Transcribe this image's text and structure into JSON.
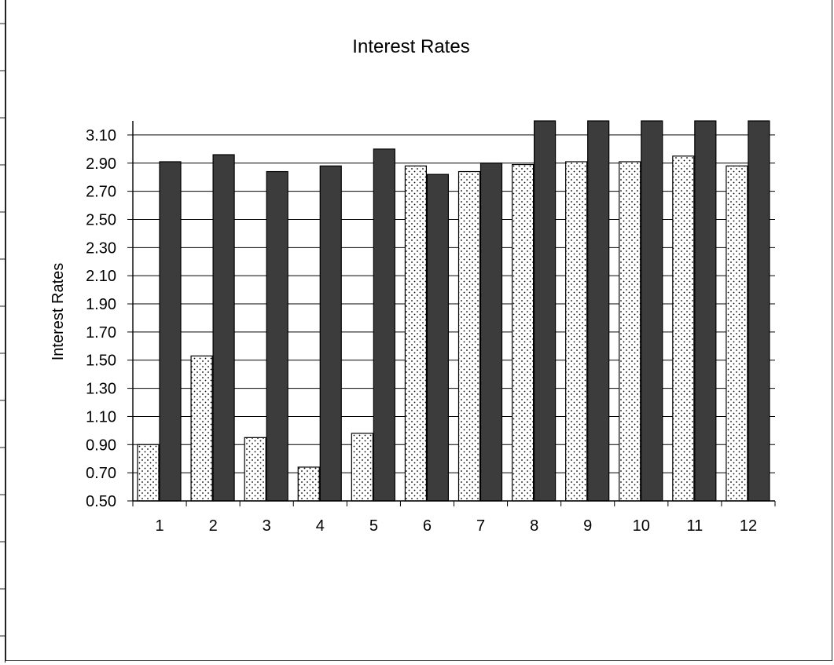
{
  "chart_data": {
    "type": "bar",
    "title": "Interest Rates",
    "xlabel": "",
    "ylabel": "Interest Rates",
    "categories": [
      "1",
      "2",
      "3",
      "4",
      "5",
      "6",
      "7",
      "8",
      "9",
      "10",
      "11",
      "12"
    ],
    "series": [
      {
        "fill": "dotted-white",
        "values": [
          0.9,
          1.53,
          0.95,
          0.74,
          0.98,
          2.88,
          2.84,
          2.89,
          2.91,
          2.91,
          2.95,
          2.88
        ]
      },
      {
        "fill": "dark-gray",
        "values": [
          2.91,
          2.96,
          2.84,
          2.88,
          3.0,
          2.82,
          2.9,
          3.2,
          3.2,
          3.2,
          3.2,
          3.2
        ]
      }
    ],
    "ylim": [
      0.5,
      3.2
    ],
    "yticks": [
      "0.50",
      "0.70",
      "0.90",
      "1.10",
      "1.30",
      "1.50",
      "1.70",
      "1.90",
      "2.10",
      "2.30",
      "2.50",
      "2.70",
      "2.90",
      "3.10"
    ],
    "grid": true,
    "legend": "none"
  },
  "colors": {
    "dark_series": "#3c3c3c",
    "dot_series_bg": "#ffffff",
    "dots": "#000000",
    "grid": "#000000"
  }
}
